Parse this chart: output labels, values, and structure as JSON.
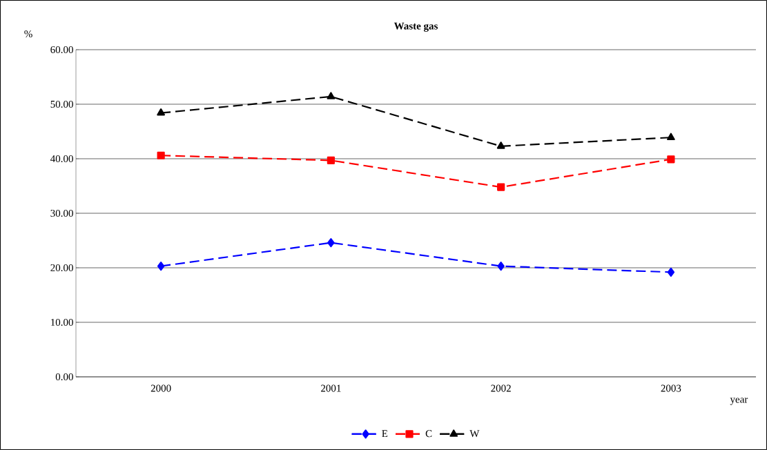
{
  "chart_data": {
    "type": "line",
    "title": "Waste gas",
    "xlabel": "year",
    "ylabel": "%",
    "categories": [
      "2000",
      "2001",
      "2002",
      "2003"
    ],
    "series": [
      {
        "name": "E",
        "color": "#0000ff",
        "marker": "diamond",
        "values": [
          20.3,
          24.6,
          20.3,
          19.2
        ]
      },
      {
        "name": "C",
        "color": "#ff0000",
        "marker": "square",
        "values": [
          40.6,
          39.7,
          34.8,
          39.9
        ]
      },
      {
        "name": "W",
        "color": "#000000",
        "marker": "triangle",
        "values": [
          48.4,
          51.4,
          42.3,
          43.9
        ]
      }
    ],
    "ylim": [
      0,
      60
    ],
    "yticks": [
      {
        "value": 0,
        "label": "0.00"
      },
      {
        "value": 10,
        "label": "10.00"
      },
      {
        "value": 20,
        "label": "20.00"
      },
      {
        "value": 30,
        "label": "30.00"
      },
      {
        "value": 40,
        "label": "40.00"
      },
      {
        "value": 50,
        "label": "50.00"
      },
      {
        "value": 60,
        "label": "60.00"
      }
    ],
    "grid": "y",
    "legend": "bottom",
    "line_style": "dashed"
  }
}
